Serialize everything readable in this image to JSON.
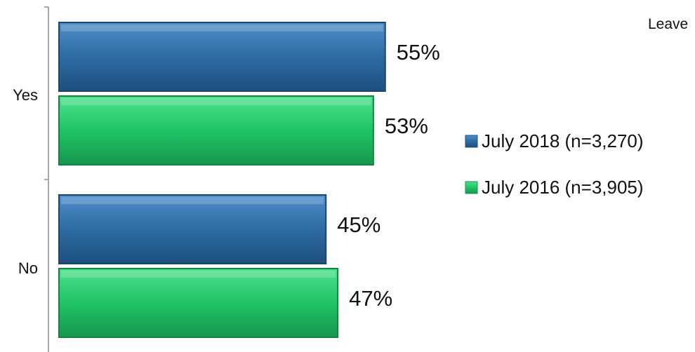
{
  "corner_text": "Leave",
  "chart_data": {
    "type": "bar",
    "orientation": "horizontal",
    "categories": [
      "Yes",
      "No"
    ],
    "series": [
      {
        "name": "July 2018 (n=3,270)",
        "values": [
          55,
          45
        ],
        "labels": [
          "55%",
          "45%"
        ],
        "color": "#2e6da4"
      },
      {
        "name": "July 2016 (n=3,905)",
        "values": [
          53,
          47
        ],
        "labels": [
          "53%",
          "47%"
        ],
        "color": "#22c468"
      }
    ],
    "value_unit": "%",
    "xlim": [
      0,
      100
    ],
    "legend_position": "right",
    "grid": false
  }
}
